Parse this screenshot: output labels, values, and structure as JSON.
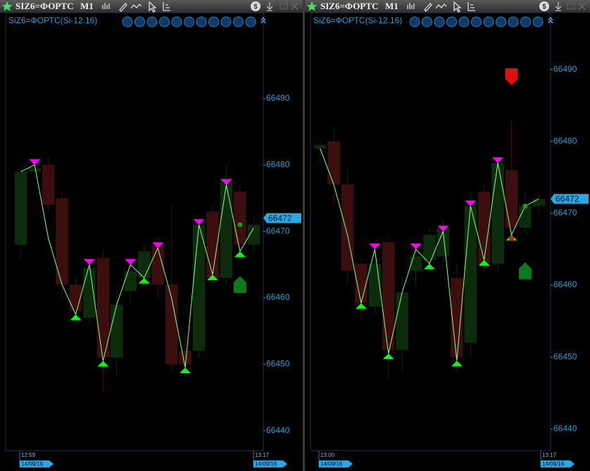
{
  "windows": [
    {
      "title": "SIZ6=ФОРТС",
      "timeframe": "M1"
    },
    {
      "title": "SIZ6=ФОРТС",
      "timeframe": "M1"
    }
  ],
  "chart_data": [
    {
      "type": "candlestick",
      "title": "SiZ6=ФОРТС(Si-12.16)",
      "open": [
        66468,
        66479,
        66480,
        66475,
        66462,
        66457,
        66466,
        66451,
        66461,
        66463,
        66468,
        66462,
        66452,
        66452,
        66473,
        66463,
        66476,
        66468
      ],
      "high": [
        66480,
        66480,
        66481,
        66476,
        66463,
        66466,
        66467,
        66461,
        66466,
        66468,
        66469,
        66474,
        66455,
        66472,
        66474,
        66480,
        66477,
        66472
      ],
      "low": [
        66466,
        66478,
        66473,
        66460,
        66456,
        66456,
        66446,
        66448,
        66459,
        66462,
        66460,
        66449,
        66448,
        66451,
        66462,
        66462,
        66467,
        66467
      ],
      "close": [
        66479,
        66479.5,
        66474,
        66462,
        66458,
        66464.5,
        66451,
        66459,
        66464,
        66467,
        66462,
        66450,
        66450,
        66471,
        66463,
        66478,
        66468,
        66471
      ],
      "up_color": "#0c2c0c",
      "down_color": "#3c0e0e",
      "wick_color": "#3a1010",
      "zigzag": {
        "values": [
          66479,
          66480,
          66469,
          66462,
          66457.5,
          66465,
          66450.5,
          66459,
          66465,
          66463,
          66467.5,
          66460,
          66449.5,
          66471,
          66463.5,
          66477,
          66467,
          66470.5
        ],
        "color": "#8cff8c"
      },
      "sell_signals": [
        1,
        5,
        8,
        10,
        13,
        15
      ],
      "buy_signals": [
        4,
        6,
        9,
        12,
        14,
        16
      ],
      "sell_color": "#ff00ff",
      "buy_color": "#00ff00",
      "dots": [
        {
          "index": 16,
          "value": 66471,
          "color": "#1a9a1a"
        }
      ],
      "arrows": [
        {
          "index": 16,
          "value": 66462,
          "direction": "up",
          "color": "#0a7a1e"
        }
      ],
      "last_price": 66472,
      "ylim": [
        66437,
        66502.5
      ],
      "yticks": [
        66440,
        66450,
        66460,
        66470,
        66480,
        66490
      ],
      "time_labels": [
        {
          "time": "12:59",
          "date": "14/09/16"
        },
        {
          "time": "13:17",
          "date": "14/09/16"
        }
      ]
    },
    {
      "type": "candlestick",
      "title": "SiZ6=ФОРТС(Si-12.16)",
      "open": [
        66479,
        66480,
        66474,
        66463,
        66457,
        66466,
        66451,
        66462,
        66463.5,
        66464,
        66461,
        66452,
        66473,
        66463,
        66476,
        66468,
        66471
      ],
      "high": [
        66480,
        66482,
        66476,
        66464,
        66466,
        66467,
        66461,
        66466,
        66468,
        66469,
        66463,
        66473,
        66474,
        66478,
        66483,
        66473,
        66473
      ],
      "low": [
        66477,
        66471,
        66460,
        66455,
        66456,
        66447,
        66448,
        66460,
        66462,
        66463,
        66448,
        66450,
        66462,
        66462,
        66466,
        66467,
        66470
      ],
      "close": [
        66479.5,
        66474,
        66462,
        66457.5,
        66463,
        66451,
        66459,
        66464,
        66467,
        66468,
        66450,
        66471,
        66463,
        66477,
        66468,
        66471,
        66472
      ],
      "up_color": "#0c2c0c",
      "down_color": "#3c0e0e",
      "wick_color": "#3a1010",
      "zigzag": {
        "values": [
          66479,
          66474,
          66467,
          66457.5,
          66465,
          66450.5,
          66459,
          66465,
          66463,
          66467.5,
          66449.5,
          66471,
          66463.5,
          66477,
          66467,
          66471,
          66472
        ],
        "color": "#8cff8c"
      },
      "sell_signals": [
        4,
        7,
        9,
        11,
        13
      ],
      "buy_signals": [
        3,
        5,
        8,
        10,
        12,
        14
      ],
      "sell_color": "#ff00ff",
      "buy_color": "#00ff00",
      "dots": [
        {
          "index": 15,
          "value": 66471,
          "color": "#1a9a1a"
        },
        {
          "index": 14,
          "value": 66466.5,
          "color": "#e01010"
        }
      ],
      "arrows": [
        {
          "index": 14,
          "value": 66489,
          "direction": "down",
          "color": "#e01010"
        },
        {
          "index": 15,
          "value": 66462,
          "direction": "up",
          "color": "#0a7a1e"
        }
      ],
      "last_price": 66472,
      "ylim": [
        66437,
        66497.5
      ],
      "yticks": [
        66440,
        66450,
        66460,
        66470,
        66480,
        66490
      ],
      "time_labels": [
        {
          "time": "13:00",
          "date": "14/09/16"
        },
        {
          "time": "13:17",
          "date": "14/09/16"
        }
      ]
    }
  ]
}
